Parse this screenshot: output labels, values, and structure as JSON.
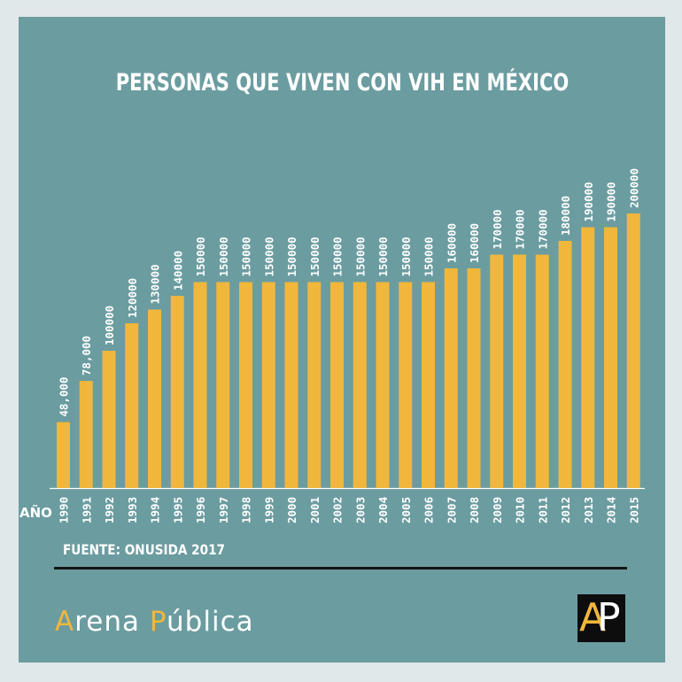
{
  "chart_data": {
    "type": "bar",
    "title": "PERSONAS QUE VIVEN CON VIH EN MÉXICO",
    "xlabel": "AÑO",
    "ylabel": "",
    "ylim": [
      0,
      210000
    ],
    "grid": false,
    "categories": [
      "1990",
      "1991",
      "1992",
      "1993",
      "1994",
      "1995",
      "1996",
      "1997",
      "1998",
      "1999",
      "2000",
      "2001",
      "2002",
      "2003",
      "2004",
      "2005",
      "2006",
      "2007",
      "2008",
      "2009",
      "2010",
      "2011",
      "2012",
      "2013",
      "2014",
      "2015"
    ],
    "values": [
      48000,
      78000,
      100000,
      120000,
      130000,
      140000,
      150000,
      150000,
      150000,
      150000,
      150000,
      150000,
      150000,
      150000,
      150000,
      150000,
      150000,
      160000,
      160000,
      170000,
      170000,
      170000,
      180000,
      190000,
      190000,
      200000
    ],
    "value_labels": [
      "48,000",
      "78,000",
      "100000",
      "120000",
      "130000",
      "140000",
      "150000",
      "150000",
      "150000",
      "150000",
      "150000",
      "150000",
      "150000",
      "150000",
      "150000",
      "150000",
      "150000",
      "160000",
      "160000",
      "170000",
      "170000",
      "170000",
      "180000",
      "190000",
      "190000",
      "200000"
    ],
    "bar_color": "#f0b73c"
  },
  "source": "FUENTE: ONUSIDA 2017",
  "brand": {
    "first_initial": "A",
    "first_rest": "rena ",
    "second_initial": "P",
    "second_rest": "ública"
  },
  "logo": {
    "letter1": "A",
    "letter2": "P"
  },
  "colors": {
    "panel": "#6b9ca0",
    "page": "#e1e8ea",
    "accent": "#f0b73c",
    "text": "#ffffff"
  }
}
